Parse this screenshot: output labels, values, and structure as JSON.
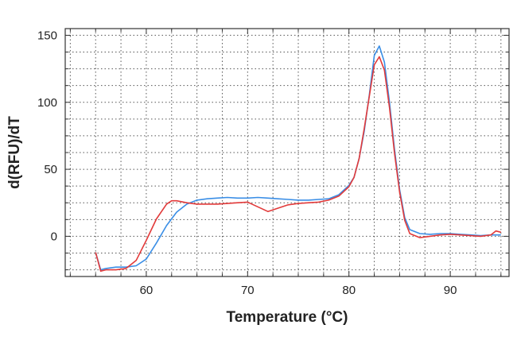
{
  "chart_data": {
    "type": "line",
    "title": "",
    "xlabel": "Temperature (°C)",
    "ylabel": "d(RFU)/dT",
    "xlim": [
      52.0,
      95.8
    ],
    "ylim": [
      -30,
      155
    ],
    "x_ticks": [
      60,
      70,
      80,
      90
    ],
    "y_ticks": [
      0,
      50,
      100,
      150
    ],
    "grid": true,
    "legend": "none",
    "series": [
      {
        "color": "#3a8ee6",
        "points": [
          [
            55.0,
            -12
          ],
          [
            55.5,
            -25
          ],
          [
            56.0,
            -24
          ],
          [
            57.0,
            -23
          ],
          [
            58.0,
            -23
          ],
          [
            59.0,
            -22
          ],
          [
            60.0,
            -17
          ],
          [
            61.0,
            -5
          ],
          [
            62.0,
            8
          ],
          [
            63.0,
            18
          ],
          [
            64.0,
            24
          ],
          [
            65.0,
            27
          ],
          [
            66.0,
            28
          ],
          [
            67.0,
            28.5
          ],
          [
            68.0,
            29
          ],
          [
            69.0,
            28.5
          ],
          [
            70.0,
            28.5
          ],
          [
            71.0,
            29
          ],
          [
            72.0,
            28.5
          ],
          [
            73.0,
            28
          ],
          [
            74.0,
            27.5
          ],
          [
            75.0,
            27
          ],
          [
            76.0,
            27
          ],
          [
            77.0,
            27.5
          ],
          [
            78.0,
            28
          ],
          [
            79.0,
            31
          ],
          [
            80.0,
            38
          ],
          [
            80.5,
            44
          ],
          [
            81.0,
            58
          ],
          [
            81.5,
            78
          ],
          [
            82.0,
            105
          ],
          [
            82.5,
            135
          ],
          [
            83.0,
            142
          ],
          [
            83.5,
            130
          ],
          [
            84.0,
            100
          ],
          [
            84.5,
            65
          ],
          [
            85.0,
            35
          ],
          [
            85.5,
            14
          ],
          [
            86.0,
            5
          ],
          [
            87.0,
            2
          ],
          [
            88.0,
            1.5
          ],
          [
            89.0,
            2
          ],
          [
            90.0,
            2
          ],
          [
            91.0,
            1.5
          ],
          [
            92.0,
            1
          ],
          [
            93.0,
            0.5
          ],
          [
            94.0,
            1
          ],
          [
            95.0,
            1
          ]
        ]
      },
      {
        "color": "#e23a3a",
        "points": [
          [
            55.0,
            -12
          ],
          [
            55.5,
            -26
          ],
          [
            56.0,
            -25
          ],
          [
            57.0,
            -25
          ],
          [
            58.0,
            -24
          ],
          [
            59.0,
            -18
          ],
          [
            60.0,
            -3
          ],
          [
            61.0,
            13
          ],
          [
            62.0,
            24
          ],
          [
            62.5,
            26.5
          ],
          [
            63.0,
            26.5
          ],
          [
            64.0,
            25
          ],
          [
            65.0,
            24
          ],
          [
            66.0,
            24
          ],
          [
            67.0,
            24
          ],
          [
            68.0,
            24.5
          ],
          [
            69.0,
            25
          ],
          [
            70.0,
            25.5
          ],
          [
            71.0,
            22
          ],
          [
            72.0,
            18.5
          ],
          [
            73.0,
            21
          ],
          [
            74.0,
            23.5
          ],
          [
            75.0,
            24.5
          ],
          [
            76.0,
            25
          ],
          [
            77.0,
            25.5
          ],
          [
            78.0,
            27
          ],
          [
            79.0,
            30
          ],
          [
            80.0,
            37
          ],
          [
            80.5,
            44
          ],
          [
            81.0,
            58
          ],
          [
            81.5,
            80
          ],
          [
            82.0,
            104
          ],
          [
            82.5,
            128
          ],
          [
            83.0,
            134
          ],
          [
            83.5,
            124
          ],
          [
            84.0,
            96
          ],
          [
            84.5,
            62
          ],
          [
            85.0,
            33
          ],
          [
            85.5,
            12
          ],
          [
            86.0,
            2
          ],
          [
            87.0,
            -1
          ],
          [
            88.0,
            0
          ],
          [
            89.0,
            1
          ],
          [
            90.0,
            1.5
          ],
          [
            91.0,
            1
          ],
          [
            92.0,
            0.5
          ],
          [
            93.0,
            0
          ],
          [
            94.0,
            1
          ],
          [
            94.5,
            4
          ],
          [
            95.0,
            3
          ]
        ]
      }
    ]
  }
}
